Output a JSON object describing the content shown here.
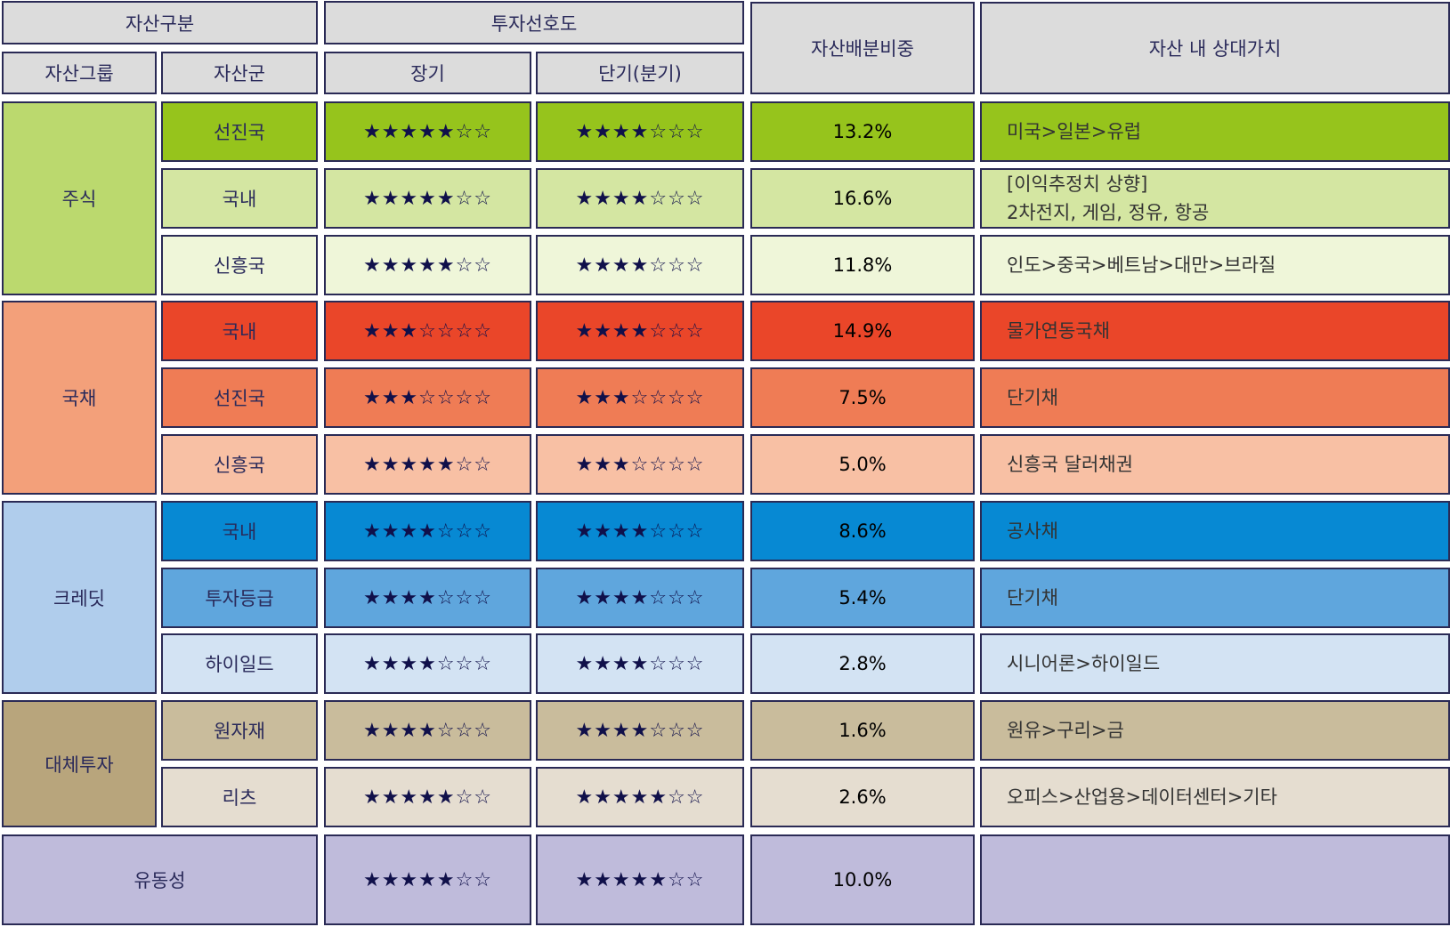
{
  "headers": {
    "asset_category": "자산구분",
    "asset_group": "자산그룹",
    "asset_class": "자산군",
    "preference": "투자선호도",
    "long_term": "장기",
    "short_term": "단기(분기)",
    "allocation": "자산배분비중",
    "relative_value": "자산 내 상대가치"
  },
  "colors": {
    "header_bg": "#dcdcdc",
    "border": "#2a2a55"
  },
  "groups": [
    {
      "name": "주식",
      "color": "#bbd96e",
      "rows": [
        {
          "class": "선진국",
          "long": "★★★★★☆☆",
          "short": "★★★★☆☆☆",
          "weight": "13.2%",
          "relative": [
            "미국>일본>유럽"
          ],
          "color": "#96c41c"
        },
        {
          "class": "국내",
          "long": "★★★★★☆☆",
          "short": "★★★★☆☆☆",
          "weight": "16.6%",
          "relative": [
            "[이익추정치 상향]",
            "2차전지, 게임, 정유, 항공"
          ],
          "color": "#d4e6a2"
        },
        {
          "class": "신흥국",
          "long": "★★★★★☆☆",
          "short": "★★★★☆☆☆",
          "weight": "11.8%",
          "relative": [
            "인도>중국>베트남>대만>브라질"
          ],
          "color": "#eff6d9"
        }
      ]
    },
    {
      "name": "국채",
      "color": "#f3a07a",
      "rows": [
        {
          "class": "국내",
          "long": "★★★☆☆☆☆",
          "short": "★★★★☆☆☆",
          "weight": "14.9%",
          "relative": [
            "물가연동국채"
          ],
          "color": "#ea4629"
        },
        {
          "class": "선진국",
          "long": "★★★☆☆☆☆",
          "short": "★★★☆☆☆☆",
          "weight": "7.5%",
          "relative": [
            "단기채"
          ],
          "color": "#ef7c55"
        },
        {
          "class": "신흥국",
          "long": "★★★★★☆☆",
          "short": "★★★☆☆☆☆",
          "weight": "5.0%",
          "relative": [
            "신흥국 달러채권"
          ],
          "color": "#f8c0a4"
        }
      ]
    },
    {
      "name": "크레딧",
      "color": "#b0cdec",
      "rows": [
        {
          "class": "국내",
          "long": "★★★★☆☆☆",
          "short": "★★★★☆☆☆",
          "weight": "8.6%",
          "relative": [
            "공사채"
          ],
          "color": "#0789d3"
        },
        {
          "class": "투자등급",
          "long": "★★★★☆☆☆",
          "short": "★★★★☆☆☆",
          "weight": "5.4%",
          "relative": [
            "단기채"
          ],
          "color": "#5fa6dd"
        },
        {
          "class": "하이일드",
          "long": "★★★★☆☆☆",
          "short": "★★★★☆☆☆",
          "weight": "2.8%",
          "relative": [
            "시니어론>하이일드"
          ],
          "color": "#d3e3f3"
        }
      ]
    },
    {
      "name": "대체투자",
      "color": "#b8a57c",
      "rows": [
        {
          "class": "원자재",
          "long": "★★★★☆☆☆",
          "short": "★★★★☆☆☆",
          "weight": "1.6%",
          "relative": [
            "원유>구리>금"
          ],
          "color": "#c9bc9c"
        },
        {
          "class": "리츠",
          "long": "★★★★★☆☆",
          "short": "★★★★★☆☆",
          "weight": "2.6%",
          "relative": [
            "오피스>산업용>데이터센터>기타"
          ],
          "color": "#e5ddd0"
        }
      ]
    }
  ],
  "liquidity": {
    "name": "유동성",
    "long": "★★★★★☆☆",
    "short": "★★★★★☆☆",
    "weight": "10.0%",
    "relative": [],
    "color": "#bfbbdb"
  }
}
